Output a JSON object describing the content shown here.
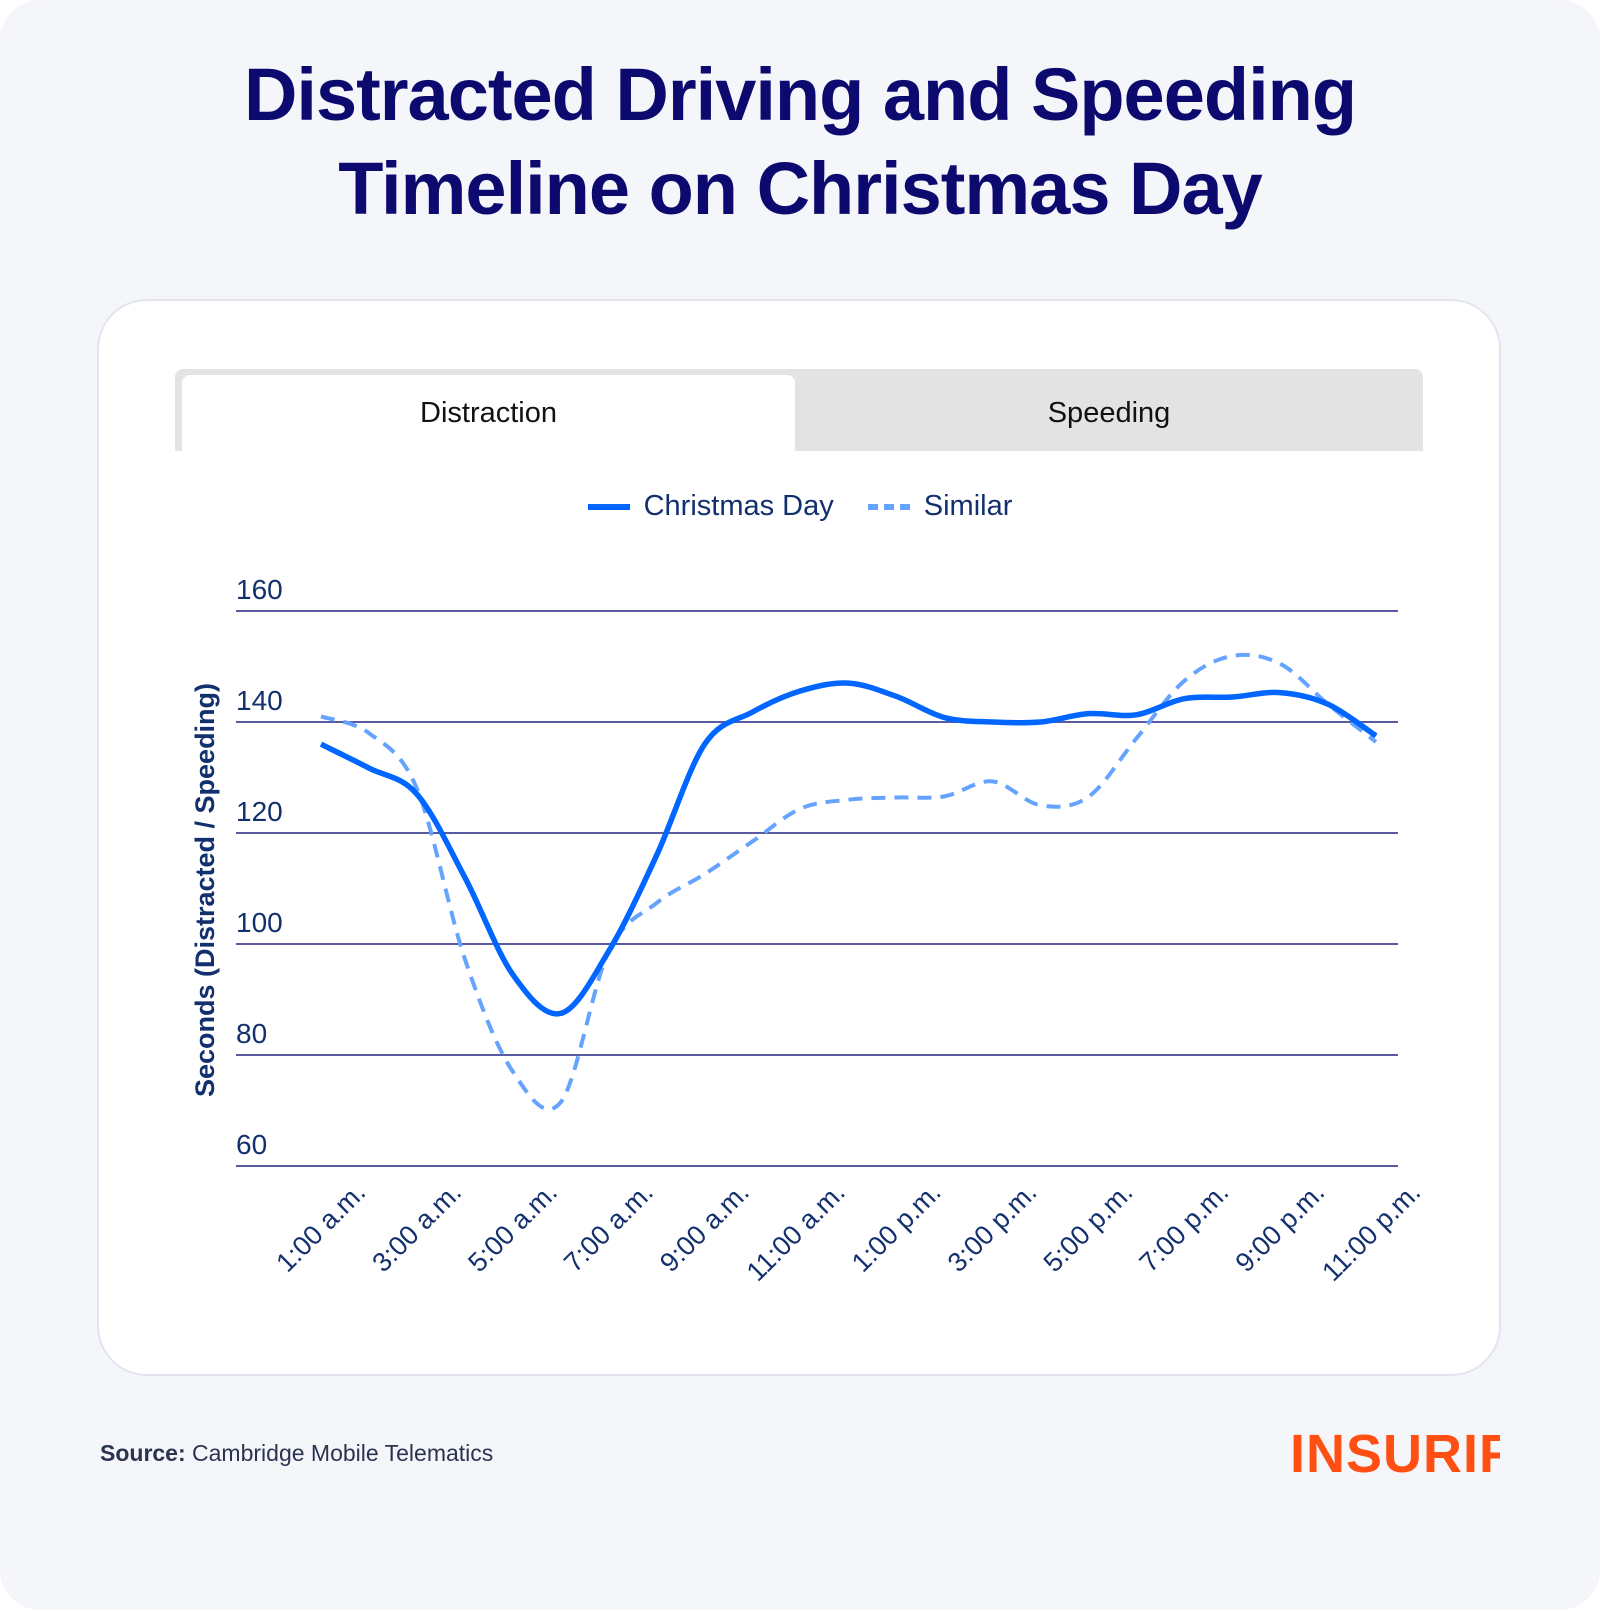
{
  "title_lines": [
    "Distracted Driving and Speeding",
    "Timeline on Christmas Day"
  ],
  "tabs": [
    {
      "label": "Distraction",
      "active": true
    },
    {
      "label": "Speeding",
      "active": false
    }
  ],
  "source": {
    "label": "Source:",
    "text": "Cambridge Mobile Telematics"
  },
  "logo": "INSURIFY",
  "colors": {
    "christmas": "#0066ff",
    "similar": "#66a3ff",
    "grid": "#5a5aa0",
    "text": "#13306e",
    "title": "#0c0a6e",
    "brand": "#ff4f12"
  },
  "chart_data": {
    "type": "line",
    "ylabel": "Seconds (Distracted / Speeding)",
    "ylim": [
      60,
      160
    ],
    "yticks": [
      "160",
      "140",
      "120",
      "100",
      "80",
      "60"
    ],
    "ytick_values": [
      160,
      140,
      120,
      100,
      80,
      60
    ],
    "grid": true,
    "legend_position": "top-center",
    "x": [
      "1:00 a.m.",
      "2:00 a.m.",
      "3:00 a.m.",
      "4:00 a.m.",
      "5:00 a.m.",
      "6:00 a.m.",
      "7:00 a.m.",
      "8:00 a.m.",
      "9:00 a.m.",
      "10:00 a.m.",
      "11:00 a.m.",
      "12:00 p.m.",
      "1:00 p.m.",
      "2:00 p.m.",
      "3:00 p.m.",
      "4:00 p.m.",
      "5:00 p.m.",
      "6:00 p.m.",
      "7:00 p.m.",
      "8:00 p.m.",
      "9:00 p.m.",
      "10:00 p.m.",
      "11:00 p.m."
    ],
    "xtick_labels": [
      "1:00 a.m.",
      "3:00 a.m.",
      "5:00 a.m.",
      "7:00 a.m.",
      "9:00 a.m.",
      "11:00 a.m.",
      "1:00 p.m.",
      "3:00 p.m.",
      "5:00 p.m.",
      "7:00 p.m.",
      "9:00 p.m.",
      "11:00 p.m."
    ],
    "series": [
      {
        "name": "Christmas Day",
        "style": "solid",
        "values": [
          136,
          131.7,
          127,
          112,
          94.5,
          87.5,
          98.7,
          116,
          136,
          141.8,
          145.6,
          147,
          144.6,
          140.8,
          140,
          140,
          141.5,
          141.3,
          144.2,
          144.5,
          145.3,
          143.2,
          137.5
        ]
      },
      {
        "name": "Similar",
        "style": "dashed",
        "values": [
          141,
          138,
          128,
          97.3,
          77,
          71.5,
          98.7,
          107.4,
          112.6,
          118.5,
          124.4,
          126,
          126.4,
          126.6,
          129.3,
          125,
          126.5,
          137,
          147.4,
          151.9,
          150.5,
          143.2,
          136.4
        ]
      }
    ]
  }
}
